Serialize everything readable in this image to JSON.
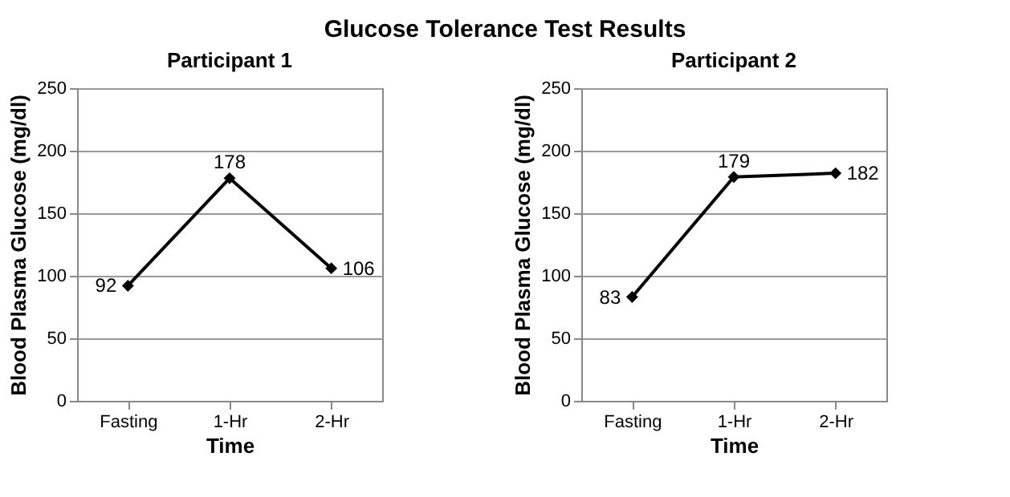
{
  "chart_data": [
    {
      "type": "other",
      "title": "Glucose Tolerance Test Results"
    },
    {
      "type": "line",
      "title": "Participant 1",
      "xlabel": "Time",
      "ylabel": "Blood Plasma Glucose (mg/dl)",
      "categories": [
        "Fasting",
        "1-Hr",
        "2-Hr"
      ],
      "series": [
        {
          "color": "#000000",
          "values": [
            92,
            178,
            106
          ]
        }
      ],
      "ylim": [
        0,
        250
      ],
      "yticks": [
        0,
        50,
        100,
        150,
        200,
        250
      ],
      "grid": "y",
      "marker": "diamond",
      "line_style": "solid",
      "data_labels": true
    },
    {
      "type": "line",
      "title": "Participant 2",
      "xlabel": "Time",
      "ylabel": "Blood Plasma Glucose (mg/dl)",
      "categories": [
        "Fasting",
        "1-Hr",
        "2-Hr"
      ],
      "series": [
        {
          "color": "#000000",
          "values": [
            83,
            179,
            182
          ]
        }
      ],
      "ylim": [
        0,
        250
      ],
      "yticks": [
        0,
        50,
        100,
        150,
        200,
        250
      ],
      "grid": "y",
      "marker": "diamond",
      "line_style": "solid",
      "data_labels": true
    }
  ]
}
